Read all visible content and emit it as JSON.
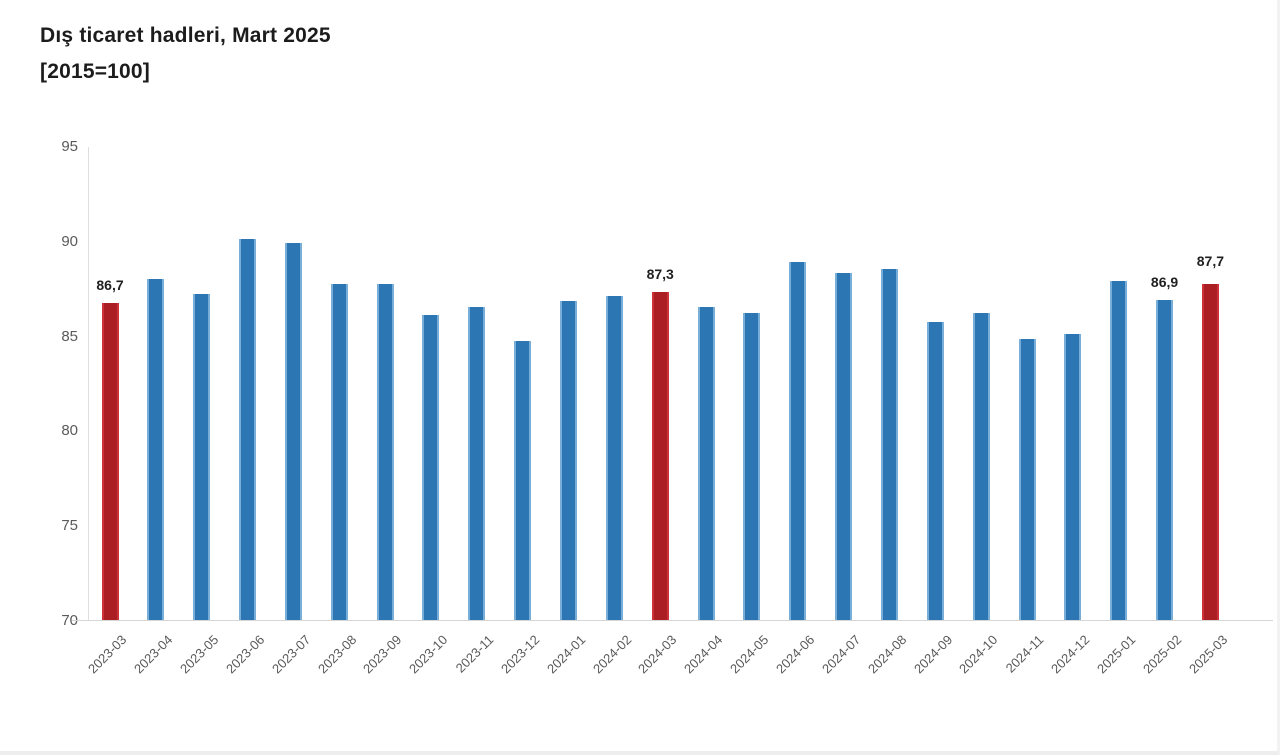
{
  "title": "Dış ticaret hadleri, Mart 2025",
  "subtitle": "[2015=100]",
  "colors": {
    "bar_default": "#2d76b4",
    "bar_default_edge": "#79aed8",
    "bar_highlight": "#ab1e23",
    "bar_highlight_edge": "#cc3238",
    "axis_line": "#dddddd",
    "tick_text": "#5a5a5a",
    "value_label_text": "#212121",
    "title_text": "#1c1c1c"
  },
  "chart_data": {
    "type": "bar",
    "title": "Dış ticaret hadleri, Mart 2025",
    "subtitle": "[2015=100]",
    "xlabel": "",
    "ylabel": "",
    "ylim": [
      70,
      95
    ],
    "yticks": [
      70,
      75,
      80,
      85,
      90,
      95
    ],
    "grid": false,
    "legend": false,
    "decimal_separator": ",",
    "categories": [
      "2023-03",
      "2023-04",
      "2023-05",
      "2023-06",
      "2023-07",
      "2023-08",
      "2023-09",
      "2023-10",
      "2023-11",
      "2023-12",
      "2024-01",
      "2024-02",
      "2024-03",
      "2024-04",
      "2024-05",
      "2024-06",
      "2024-07",
      "2024-08",
      "2024-09",
      "2024-10",
      "2024-11",
      "2024-12",
      "2025-01",
      "2025-02",
      "2025-03"
    ],
    "values": [
      86.7,
      88.0,
      87.2,
      90.1,
      89.9,
      87.7,
      87.7,
      86.1,
      86.5,
      84.7,
      86.8,
      87.1,
      87.3,
      86.5,
      86.2,
      88.9,
      88.3,
      88.5,
      85.7,
      86.2,
      84.8,
      85.1,
      87.9,
      86.9,
      87.7
    ],
    "highlighted_categories": [
      "2023-03",
      "2024-03",
      "2025-03"
    ],
    "point_labels": {
      "2023-03": "86,7",
      "2024-03": "87,3",
      "2025-02": "86,9",
      "2025-03": "87,7"
    }
  }
}
